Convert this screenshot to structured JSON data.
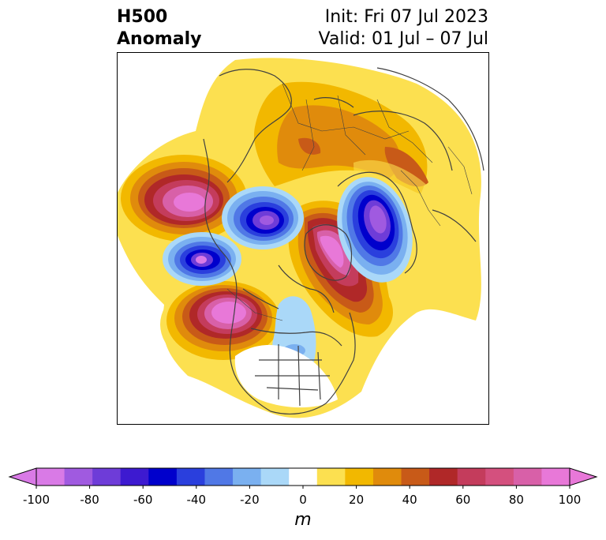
{
  "title": {
    "left_line1": "H500",
    "left_line2": "Anomaly",
    "right_line1": "Init: Fri 07 Jul 2023",
    "right_line2": "Valid: 01 Jul – 07 Jul"
  },
  "colorbar": {
    "unit": "m",
    "ticks": [
      "-100",
      "-80",
      "-60",
      "-40",
      "-20",
      "0",
      "20",
      "40",
      "60",
      "80",
      "100"
    ],
    "levels": [
      -100,
      -90,
      -80,
      -70,
      -60,
      -50,
      -40,
      -30,
      -20,
      -10,
      10,
      20,
      30,
      40,
      50,
      60,
      70,
      80,
      90,
      100
    ],
    "colors": [
      "#d97ae6",
      "#a05ae0",
      "#6e3cd8",
      "#3d1ad0",
      "#0000cc",
      "#2a3fdd",
      "#5078e6",
      "#7ab0f0",
      "#aad8f8",
      "#ffffff",
      "#fce050",
      "#f2b800",
      "#e08b0c",
      "#c85a18",
      "#b02828",
      "#c43c5c",
      "#d4507e",
      "#d860a8",
      "#e878d8"
    ],
    "extend_min_color": "#d97ae6",
    "extend_max_color": "#e878d8"
  },
  "map": {
    "projection": "north-polar-stereographic",
    "region": "Northern Hemisphere",
    "coastline_color": "#404040"
  }
}
